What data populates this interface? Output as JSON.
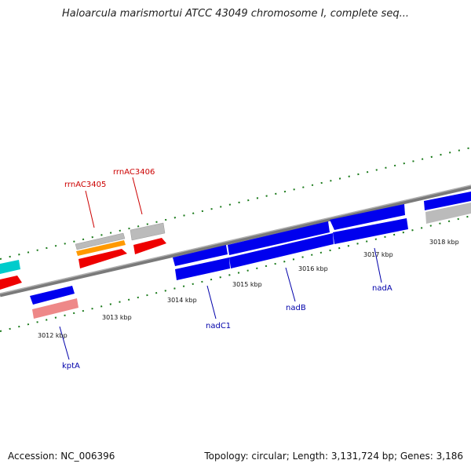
{
  "title": "Haloarcula marismortui ATCC 43049 chromosome I, complete seq...",
  "footer": {
    "accession": "Accession: NC_006396",
    "summary": "Topology: circular; Length: 3,131,724 bp; Genes: 3,186"
  },
  "ticks": [
    "3012 kbp",
    "3013 kbp",
    "3014 kbp",
    "3015 kbp",
    "3016 kbp",
    "3017 kbp",
    "3018 kbp"
  ],
  "gene_labels": {
    "rrnAC3405": "rrnAC3405",
    "rrnAC3406": "rrnAC3406",
    "kptA": "kptA",
    "nadC1": "nadC1",
    "nadB": "nadB",
    "nadA": "nadA"
  },
  "colors": {
    "backbone": "#888888",
    "blue": "#0000ee",
    "red": "#ee0000",
    "grey": "#bbbbbb",
    "orange": "#ff9900",
    "cyan": "#00cccc",
    "pink": "#ee8888",
    "green_dots": "#1a7a1a",
    "label_red": "#cc0000",
    "label_blue": "#0000aa"
  }
}
